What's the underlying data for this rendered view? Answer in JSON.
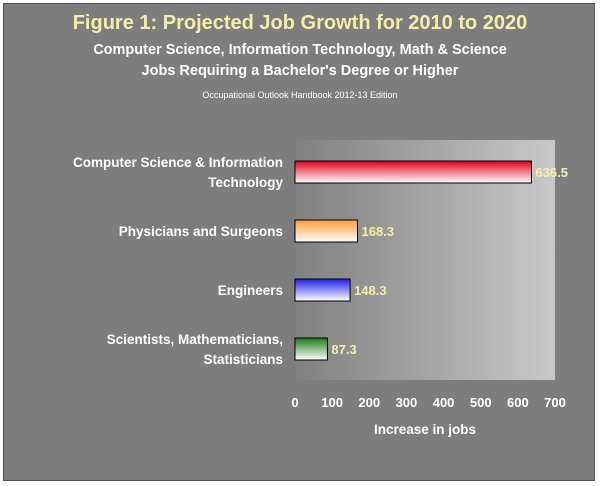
{
  "header": {
    "title": "Figure 1: Projected Job Growth for 2010 to 2020",
    "subtitle_line1": "Computer Science, Information Technology, Math & Science",
    "subtitle_line2": "Jobs Requiring a Bachelor's Degree or Higher",
    "source": "Occupational Outlook Handbook 2012-13 Edition"
  },
  "chart_data": {
    "type": "bar",
    "orientation": "horizontal",
    "title": "Figure 1: Projected Job Growth for 2010 to 2020",
    "subtitle": "Computer Science, Information Technology, Math & Science Jobs Requiring a Bachelor's Degree or Higher",
    "xlabel": "Increase in jobs",
    "ylabel": "",
    "categories": [
      [
        "Computer Science & Information",
        "Technology"
      ],
      [
        "Physicians and Surgeons"
      ],
      [
        "Engineers"
      ],
      [
        "Scientists, Mathematicians,",
        "Statisticians"
      ]
    ],
    "values": [
      636.5,
      168.3,
      148.3,
      87.3
    ],
    "value_labels": [
      "636.5",
      "168.3",
      "148.3",
      "87.3"
    ],
    "bar_colors": [
      "#e0001b",
      "#ff9a3a",
      "#2020e8",
      "#1a7a1a"
    ],
    "xlim": [
      0,
      700
    ],
    "xticks": [
      0,
      100,
      200,
      300,
      400,
      500,
      600,
      700
    ],
    "grid": false,
    "legend": "none"
  }
}
